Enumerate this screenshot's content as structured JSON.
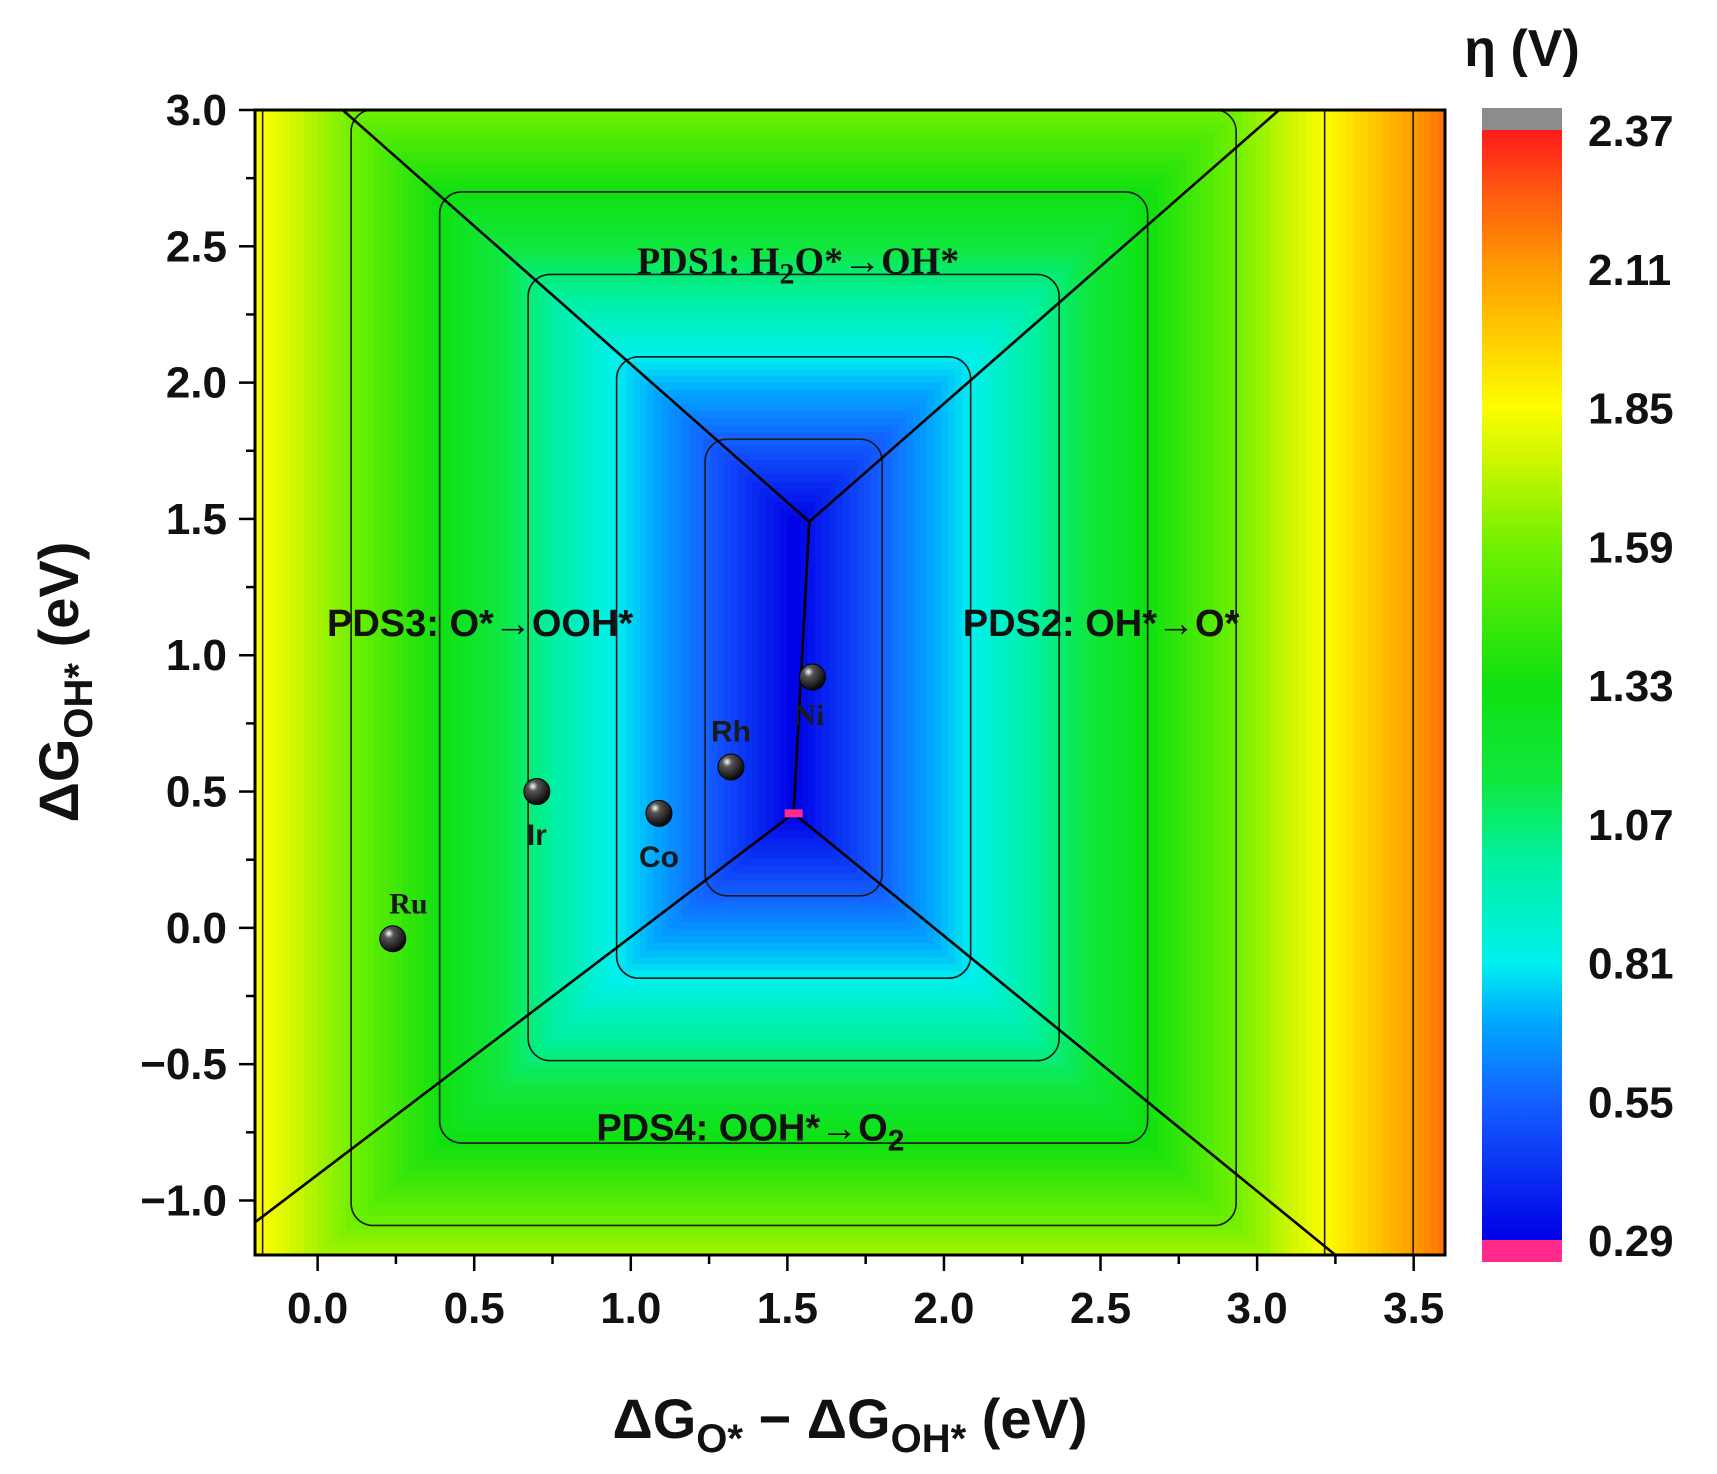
{
  "chart_data": {
    "type": "heatmap",
    "title": "",
    "xlabel": {
      "prefix": "ΔG",
      "sub1": "O*",
      "mid": " − ΔG",
      "sub2": "OH*",
      "suffix": " (eV)"
    },
    "ylabel": {
      "prefix": "ΔG",
      "sub": "OH*",
      "suffix": " (eV)"
    },
    "xlim": [
      -0.2,
      3.6
    ],
    "ylim": [
      -1.2,
      3.0
    ],
    "x_ticks": [
      0.0,
      0.5,
      1.0,
      1.5,
      2.0,
      2.5,
      3.0,
      3.5
    ],
    "x_tick_labels": [
      "0.0",
      "0.5",
      "1.0",
      "1.5",
      "2.0",
      "2.5",
      "3.0",
      "3.5"
    ],
    "y_ticks": [
      3.0,
      2.5,
      2.0,
      1.5,
      1.0,
      0.5,
      0.0,
      -0.5,
      -1.0
    ],
    "y_tick_labels": [
      "3.0",
      "2.5",
      "2.0",
      "1.5",
      "1.0",
      "0.5",
      "0.0",
      "−0.5",
      "−1.0"
    ],
    "optimum": {
      "x": 1.52,
      "y": 0.42,
      "eta_min": 0.29
    },
    "apex": {
      "x": 1.57,
      "y": 1.49
    },
    "boundary_lines": [
      {
        "from": [
          1.57,
          1.49
        ],
        "to": [
          0.08,
          3.0
        ]
      },
      {
        "from": [
          1.57,
          1.49
        ],
        "to": [
          3.07,
          3.0
        ]
      },
      {
        "from": [
          1.57,
          1.49
        ],
        "to": [
          1.52,
          0.42
        ]
      },
      {
        "from": [
          1.52,
          0.42
        ],
        "to": [
          -0.2,
          -1.08
        ]
      },
      {
        "from": [
          1.52,
          0.42
        ],
        "to": [
          3.25,
          -1.2
        ]
      }
    ],
    "regions": [
      {
        "id": "pds1",
        "text": "PDS1: H",
        "sub": "2",
        "tail": "O*",
        "arrow": "→",
        "end": "OH*",
        "x": 1.02,
        "y": 2.4
      },
      {
        "id": "pds2",
        "text": "PDS2: OH*",
        "arrow": "→",
        "end": "O*",
        "x": 2.06,
        "y": 1.07
      },
      {
        "id": "pds3",
        "text": "PDS3: O*",
        "arrow": "→",
        "end": "OOH*",
        "x": 0.03,
        "y": 1.07
      },
      {
        "id": "pds4",
        "text": "PDS4: OOH*",
        "arrow": "→",
        "end": "O",
        "sub": "2",
        "x": 0.89,
        "y": -0.78
      }
    ],
    "points": [
      {
        "name": "Ru",
        "x": 0.24,
        "y": -0.04,
        "label_dx": 0.05,
        "label_dy": 0.13
      },
      {
        "name": "Ir",
        "x": 0.7,
        "y": 0.5,
        "label_dx": 0.0,
        "label_dy": -0.16
      },
      {
        "name": "Co",
        "x": 1.09,
        "y": 0.42,
        "label_dx": 0.0,
        "label_dy": -0.16
      },
      {
        "name": "Rh",
        "x": 1.32,
        "y": 0.59,
        "label_dx": 0.0,
        "label_dy": 0.13
      },
      {
        "name": "Ni",
        "x": 1.58,
        "y": 0.92,
        "label_dx": -0.01,
        "label_dy": -0.14
      }
    ],
    "contour_levels": [
      0.55,
      0.81,
      1.07,
      1.33,
      1.59,
      1.85,
      2.11
    ],
    "colorbar": {
      "title": "η (V)",
      "min": 0.29,
      "max": 2.37,
      "tick_values": [
        2.37,
        2.11,
        1.85,
        1.59,
        1.33,
        1.07,
        0.81,
        0.55,
        0.29
      ],
      "tick_labels": [
        "2.37",
        "2.11",
        "1.85",
        "1.59",
        "1.33",
        "1.07",
        "0.81",
        "0.55",
        "0.29"
      ],
      "over_color": "#8c8c8c",
      "under_color": "#ff2a8a",
      "stops": [
        {
          "v": 0.29,
          "color": "#0000e6"
        },
        {
          "v": 0.55,
          "color": "#1460ff"
        },
        {
          "v": 0.7,
          "color": "#00a8ff"
        },
        {
          "v": 0.81,
          "color": "#00f0ee"
        },
        {
          "v": 1.0,
          "color": "#00f0a0"
        },
        {
          "v": 1.15,
          "color": "#10e840"
        },
        {
          "v": 1.33,
          "color": "#10e010"
        },
        {
          "v": 1.59,
          "color": "#70f000"
        },
        {
          "v": 1.75,
          "color": "#ccf600"
        },
        {
          "v": 1.85,
          "color": "#fdfd00"
        },
        {
          "v": 2.0,
          "color": "#ffc600"
        },
        {
          "v": 2.11,
          "color": "#ff9c00"
        },
        {
          "v": 2.25,
          "color": "#ff5a10"
        },
        {
          "v": 2.37,
          "color": "#ff1a1a"
        }
      ]
    }
  },
  "colors": {
    "axis": "#000000",
    "boundary": "#000000",
    "contour": "#1a1a1a",
    "point_fill": "#111111"
  }
}
